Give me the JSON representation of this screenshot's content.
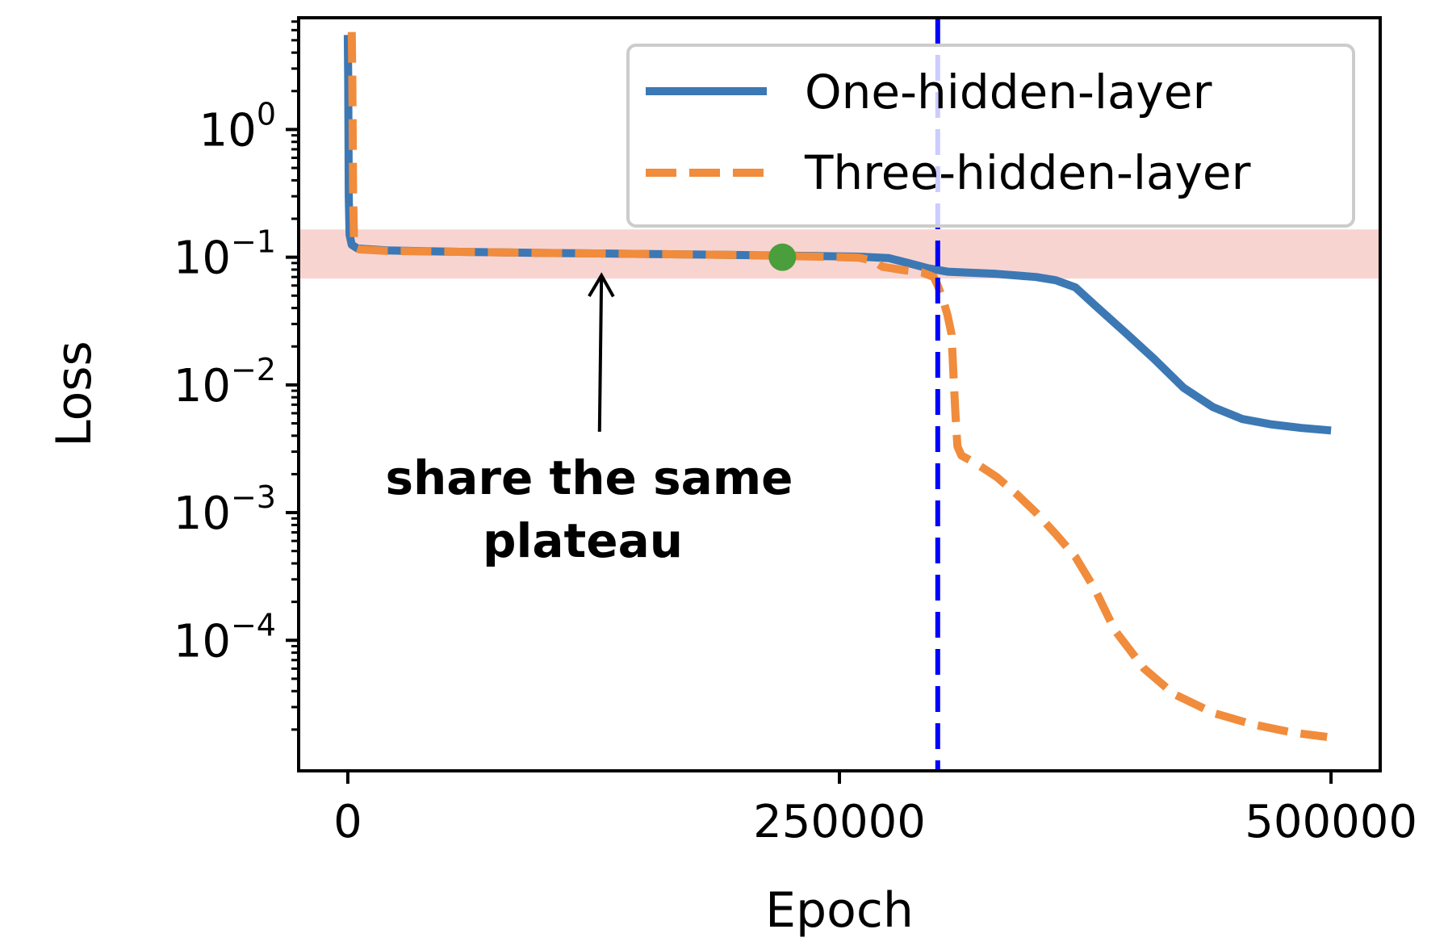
{
  "chart_data": {
    "type": "line",
    "xlabel": "Epoch",
    "ylabel": "Loss",
    "y_scale": "log",
    "xlim": [
      -25000,
      525000
    ],
    "ylim": [
      9.5e-06,
      7.5
    ],
    "x_ticks": [
      {
        "value": 0,
        "label": "0"
      },
      {
        "value": 250000,
        "label": "250000"
      },
      {
        "value": 500000,
        "label": "500000"
      }
    ],
    "y_ticks": [
      {
        "value": 1,
        "base": "10",
        "exp": "0"
      },
      {
        "value": 0.1,
        "base": "10",
        "exp": "−1"
      },
      {
        "value": 0.01,
        "base": "10",
        "exp": "−2"
      },
      {
        "value": 0.001,
        "base": "10",
        "exp": "−3"
      },
      {
        "value": 0.0001,
        "base": "10",
        "exp": "−4"
      }
    ],
    "legend_position": "top-right",
    "grid": false,
    "series": [
      {
        "name": "One-hidden-layer",
        "color": "#3c78b4",
        "style": "solid",
        "points": [
          [
            0,
            5.5
          ],
          [
            200,
            2.5
          ],
          [
            500,
            0.3
          ],
          [
            900,
            0.15
          ],
          [
            2000,
            0.125
          ],
          [
            5000,
            0.117
          ],
          [
            20000,
            0.113
          ],
          [
            60000,
            0.11
          ],
          [
            100000,
            0.108
          ],
          [
            150000,
            0.106
          ],
          [
            200000,
            0.104
          ],
          [
            240000,
            0.102
          ],
          [
            260000,
            0.101
          ],
          [
            275000,
            0.0985
          ],
          [
            285000,
            0.09
          ],
          [
            295000,
            0.082
          ],
          [
            305000,
            0.077
          ],
          [
            330000,
            0.074
          ],
          [
            350000,
            0.07
          ],
          [
            360000,
            0.066
          ],
          [
            370000,
            0.058
          ],
          [
            380000,
            0.042
          ],
          [
            395000,
            0.026
          ],
          [
            410000,
            0.016
          ],
          [
            425000,
            0.0095
          ],
          [
            440000,
            0.0067
          ],
          [
            455000,
            0.0054
          ],
          [
            470000,
            0.0049
          ],
          [
            485000,
            0.0046
          ],
          [
            500000,
            0.0044
          ]
        ]
      },
      {
        "name": "Three-hidden-layer",
        "color": "#f08c3c",
        "style": "dashed",
        "points": [
          [
            2000,
            5.8
          ],
          [
            2300,
            2.5
          ],
          [
            2700,
            0.3
          ],
          [
            3200,
            0.13
          ],
          [
            4000,
            0.118
          ],
          [
            6000,
            0.115
          ],
          [
            20000,
            0.112
          ],
          [
            60000,
            0.11
          ],
          [
            100000,
            0.108
          ],
          [
            150000,
            0.106
          ],
          [
            200000,
            0.104
          ],
          [
            240000,
            0.101
          ],
          [
            260000,
            0.099
          ],
          [
            267000,
            0.094
          ],
          [
            272000,
            0.084
          ],
          [
            283000,
            0.079
          ],
          [
            292000,
            0.076
          ],
          [
            298000,
            0.07
          ],
          [
            300000,
            0.06
          ],
          [
            303000,
            0.045
          ],
          [
            305000,
            0.035
          ],
          [
            307000,
            0.025
          ],
          [
            308000,
            0.012
          ],
          [
            309000,
            0.006
          ],
          [
            310000,
            0.0033
          ],
          [
            312000,
            0.0028
          ],
          [
            320000,
            0.0024
          ],
          [
            330000,
            0.0019
          ],
          [
            340000,
            0.0014
          ],
          [
            350000,
            0.001
          ],
          [
            360000,
            0.00068
          ],
          [
            370000,
            0.00045
          ],
          [
            380000,
            0.00025
          ],
          [
            390000,
            0.00012
          ],
          [
            405000,
            6e-05
          ],
          [
            420000,
            3.8e-05
          ],
          [
            440000,
            2.7e-05
          ],
          [
            460000,
            2.2e-05
          ],
          [
            480000,
            1.9e-05
          ],
          [
            498000,
            1.75e-05
          ]
        ]
      }
    ],
    "vertical_line": {
      "x": 300000,
      "color": "#0000ff",
      "style": "dashed"
    },
    "highlight_band": {
      "y_min": 0.068,
      "y_max": 0.165,
      "color": "#f4b8b2"
    },
    "marker_point": {
      "x": 221000,
      "y": 0.1,
      "color": "#4a9e3c"
    },
    "annotation": {
      "lines": [
        "share the same",
        "plateau"
      ],
      "arrow_from": [
        128000,
        0.0043
      ],
      "arrow_to": [
        129000,
        0.072
      ]
    }
  }
}
